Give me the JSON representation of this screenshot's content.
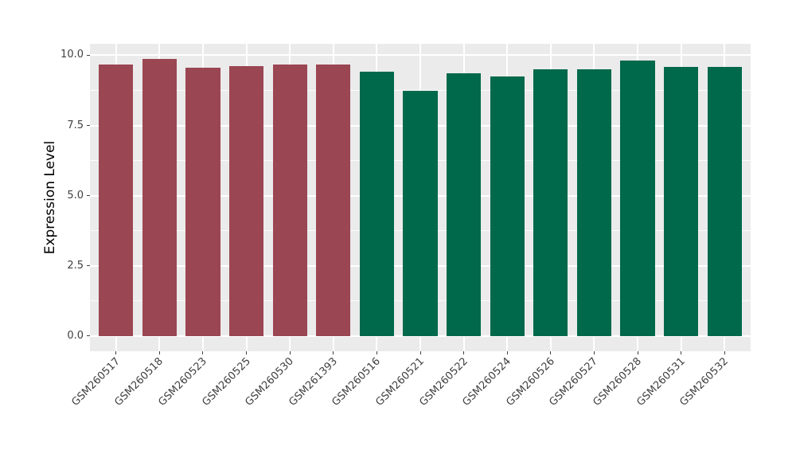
{
  "figure": {
    "background": "#FFFFFF"
  },
  "chart_data": {
    "type": "bar",
    "title": "",
    "xlabel": "",
    "ylabel": "Expression Level",
    "categories": [
      "GSM260517",
      "GSM260518",
      "GSM260523",
      "GSM260525",
      "GSM260530",
      "GSM261393",
      "GSM260516",
      "GSM260521",
      "GSM260522",
      "GSM260524",
      "GSM260526",
      "GSM260527",
      "GSM260528",
      "GSM260531",
      "GSM260532"
    ],
    "values": [
      9.68,
      9.87,
      9.56,
      9.62,
      9.68,
      9.67,
      9.43,
      8.74,
      9.36,
      9.25,
      9.51,
      9.51,
      9.81,
      9.58,
      9.58
    ],
    "bar_colors": [
      "#9B4653",
      "#9B4653",
      "#9B4653",
      "#9B4653",
      "#9B4653",
      "#9B4653",
      "#00694B",
      "#00694B",
      "#00694B",
      "#00694B",
      "#00694B",
      "#00694B",
      "#00694B",
      "#00694B",
      "#00694B"
    ],
    "group_colors": {
      "maroon_group": "#9B4653",
      "green_group": "#00694B"
    },
    "y_axis": {
      "ticks": [
        {
          "value": 0,
          "label": "0.0"
        },
        {
          "value": 2.5,
          "label": "2.5"
        },
        {
          "value": 5,
          "label": "5.0"
        },
        {
          "value": 7.5,
          "label": "7.5"
        },
        {
          "value": 10,
          "label": "10.0"
        }
      ],
      "minor_ticks": [
        1.25,
        3.75,
        6.25,
        8.75
      ],
      "lim": [
        -0.54,
        10.41
      ]
    },
    "x_tick_rotation": 45,
    "grid": true,
    "legend": "none",
    "panel_background": "#EBEBEB",
    "gridline_color": "#FFFFFF"
  }
}
